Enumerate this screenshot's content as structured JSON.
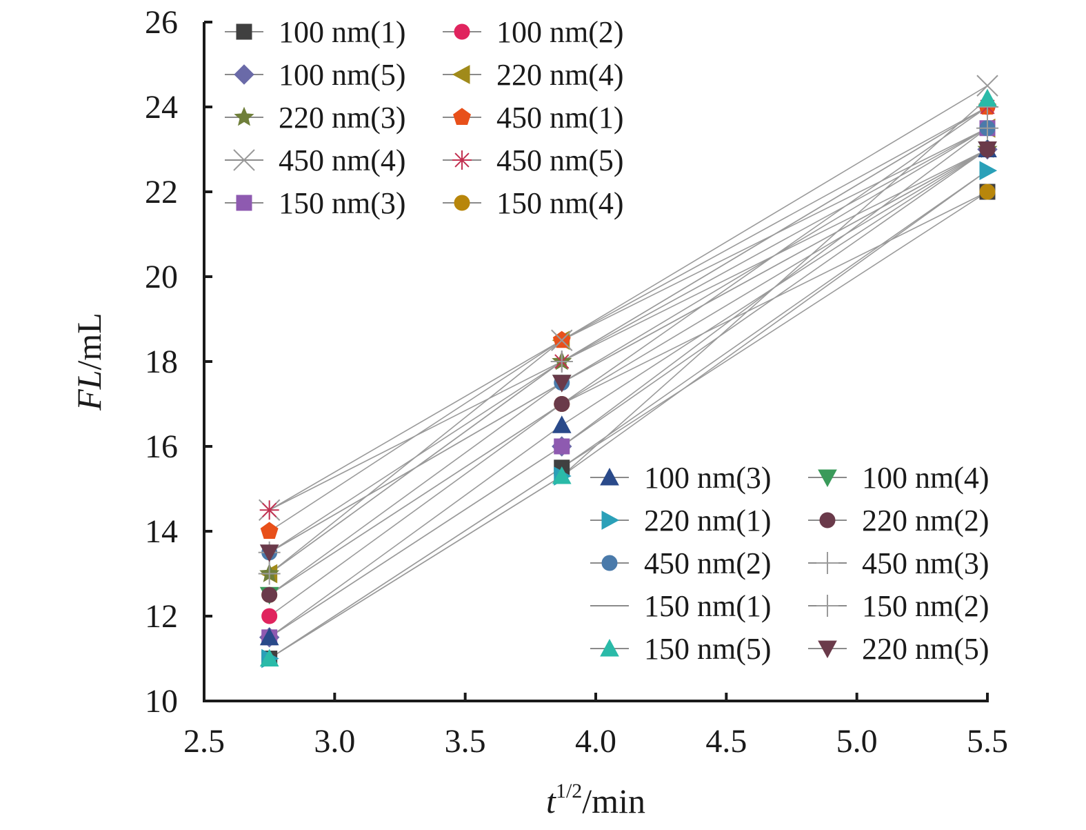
{
  "chart_data": {
    "type": "line",
    "xlabel_var": "t",
    "xlabel_sup": "1/2",
    "xlabel_unit": "/min",
    "ylabel_var": "FL",
    "ylabel_unit": "/mL",
    "xlim": [
      2.5,
      5.5
    ],
    "ylim": [
      10,
      26
    ],
    "xticks": [
      "2.5",
      "3.0",
      "3.5",
      "4.0",
      "4.5",
      "5.0",
      "5.5"
    ],
    "yticks": [
      "10",
      "12",
      "14",
      "16",
      "18",
      "20",
      "22",
      "24",
      "26"
    ],
    "grid": false,
    "legend_placement": [
      "top-left",
      "bottom-right"
    ],
    "x": [
      2.75,
      3.87,
      5.5
    ],
    "series": [
      {
        "name": "100 nm(1)",
        "marker": "square",
        "color": "#404040",
        "values": [
          11.0,
          15.5,
          22.0
        ]
      },
      {
        "name": "100 nm(2)",
        "marker": "circle",
        "color": "#e0245e",
        "values": [
          12.0,
          17.0,
          24.0
        ]
      },
      {
        "name": "100 nm(5)",
        "marker": "diamond",
        "color": "#6a6aa8",
        "values": [
          11.5,
          16.0,
          23.0
        ]
      },
      {
        "name": "220 nm(4)",
        "marker": "triangle-left",
        "color": "#a08a1a",
        "values": [
          13.0,
          18.5,
          23.5
        ]
      },
      {
        "name": "220 nm(3)",
        "marker": "star",
        "color": "#6f7f3a",
        "values": [
          13.0,
          18.0,
          23.0
        ]
      },
      {
        "name": "450 nm(1)",
        "marker": "pentagon",
        "color": "#e8501a",
        "values": [
          14.0,
          18.5,
          24.0
        ]
      },
      {
        "name": "450 nm(4)",
        "marker": "x",
        "color": "#9a9a9a",
        "values": [
          14.5,
          18.5,
          24.5
        ]
      },
      {
        "name": "450 nm(5)",
        "marker": "asterisk",
        "color": "#c23050",
        "values": [
          14.5,
          18.0,
          24.0
        ]
      },
      {
        "name": "150 nm(3)",
        "marker": "square",
        "color": "#8e5ab0",
        "values": [
          11.5,
          16.0,
          23.5
        ]
      },
      {
        "name": "150 nm(4)",
        "marker": "circle",
        "color": "#b8860b",
        "values": [
          12.5,
          17.0,
          22.0
        ]
      },
      {
        "name": "100 nm(3)",
        "marker": "triangle-up",
        "color": "#2a4a8a",
        "values": [
          11.5,
          16.5,
          23.0
        ]
      },
      {
        "name": "100 nm(4)",
        "marker": "triangle-down",
        "color": "#3a9a5a",
        "values": [
          12.5,
          17.5,
          23.0
        ]
      },
      {
        "name": "220 nm(1)",
        "marker": "triangle-right",
        "color": "#2aa0b8",
        "values": [
          11.0,
          15.3,
          22.5
        ]
      },
      {
        "name": "220 nm(2)",
        "marker": "circle",
        "color": "#6a3a4a",
        "values": [
          12.5,
          17.0,
          23.0
        ]
      },
      {
        "name": "450 nm(2)",
        "marker": "circle",
        "color": "#4a7aaa",
        "values": [
          13.5,
          17.5,
          23.5
        ]
      },
      {
        "name": "450 nm(3)",
        "marker": "plus",
        "color": "#9a9a9a",
        "values": [
          13.0,
          18.0,
          24.0
        ]
      },
      {
        "name": "150 nm(1)",
        "marker": "none",
        "color": "#555555",
        "values": [
          11.0,
          15.5,
          22.5
        ]
      },
      {
        "name": "150 nm(2)",
        "marker": "plus",
        "color": "#9a9a9a",
        "values": [
          13.5,
          18.0,
          23.5
        ]
      },
      {
        "name": "150 nm(5)",
        "marker": "triangle-up",
        "color": "#2abaa8",
        "values": [
          11.0,
          15.3,
          24.2
        ]
      },
      {
        "name": "220 nm(5)",
        "marker": "triangle-down",
        "color": "#6a3a4a",
        "values": [
          13.5,
          17.5,
          23.0
        ]
      }
    ]
  }
}
